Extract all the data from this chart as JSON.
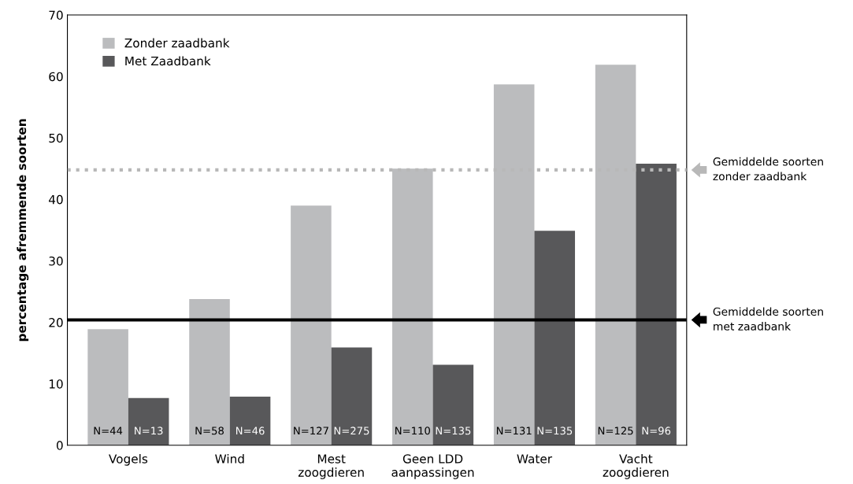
{
  "chart_data": {
    "type": "bar",
    "ylabel": "percentage afremmende soorten",
    "categories": [
      "Vogels",
      "Wind",
      "Mest\nzoogdieren",
      "Geen LDD\naanpassingen",
      "Water",
      "Vacht\nzoogdieren"
    ],
    "series": [
      {
        "name": "Zonder zaadbank",
        "color": "#bbbcbe",
        "values": [
          18.9,
          23.8,
          39.0,
          45.0,
          58.7,
          61.9
        ]
      },
      {
        "name": "Met Zaadbank",
        "color": "#58585a",
        "values": [
          7.7,
          7.9,
          15.9,
          13.1,
          34.9,
          45.8
        ]
      }
    ],
    "annotations": [
      "N=44",
      "N=58",
      "N=127",
      "N=110",
      "N=131",
      "N=125",
      "N=13",
      "N=46",
      "N=275",
      "N=135",
      "N=135",
      "N=96"
    ],
    "ylim": [
      0,
      70
    ],
    "yticks": [
      0,
      10,
      20,
      30,
      40,
      50,
      60,
      70
    ],
    "ref_lines": [
      {
        "axis": "y",
        "value": 44.8,
        "label": "Gemiddelde soorten\nzonder zaadbank",
        "color": "#b8b8b8",
        "line_style": "dotted"
      },
      {
        "axis": "y",
        "value": 20.4,
        "label": "Gemiddelde soorten\nmet zaadbank",
        "color": "#000000",
        "line_style": "solid"
      }
    ],
    "grid": false,
    "legend": "top left"
  }
}
